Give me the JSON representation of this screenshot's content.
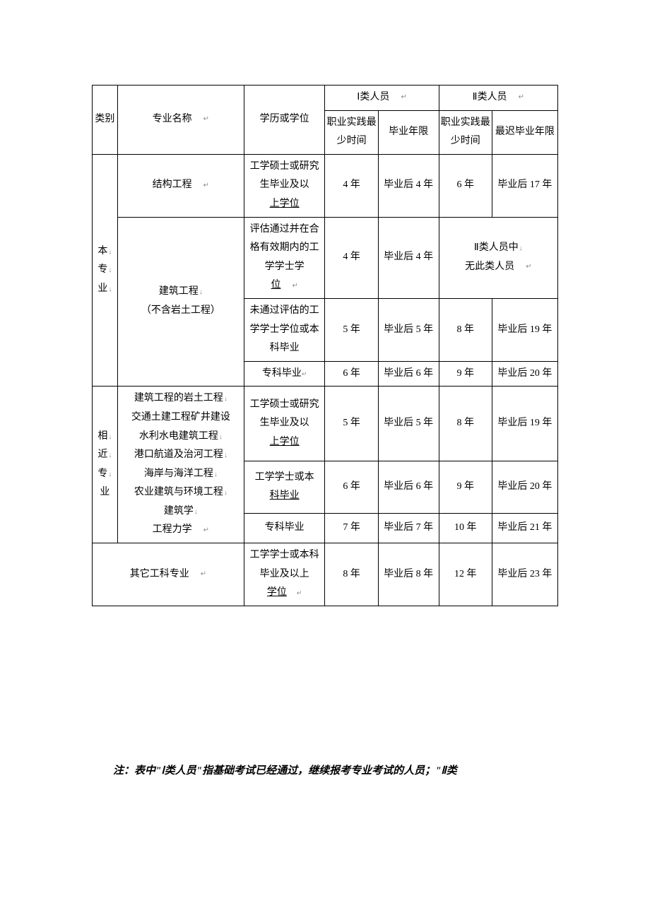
{
  "header": {
    "category": "类别",
    "major": "专业名称",
    "education": "学历或学位",
    "type1": "Ⅰ类人员",
    "type2": "Ⅱ类人员",
    "practice_time": "职业实践最少时间",
    "grad_year": "毕业年限",
    "practice_time2": "职业实践最少时间",
    "grad_year2": "最迟毕业年限"
  },
  "rows": {
    "cat1": "本",
    "cat1b": "专",
    "cat1c": "业",
    "major1": "结构工程",
    "edu1": "工学硕士或研究生毕业及以",
    "edu1b": "上学位",
    "t1_1": "4 年",
    "y1_1": "毕业后 4 年",
    "t2_1": "6 年",
    "y2_1": "毕业后 17 年",
    "major2a": "建筑工程",
    "major2b": "（不含岩土工程）",
    "edu2": "评估通过并在合格有效期内的工学学士学",
    "edu2b": "位",
    "t1_2": "4 年",
    "y1_2": "毕业后 4 年",
    "merge2a": "Ⅱ类人员中",
    "merge2b": "无此类人员",
    "edu3": "未通过评估的工学学士学位或本科毕业",
    "t1_3": "5 年",
    "y1_3": "毕业后 5 年",
    "t2_3": "8 年",
    "y2_3": "毕业后 19 年",
    "edu4": "专科毕业",
    "t1_4": "6 年",
    "y1_4": "毕业后 6 年",
    "t2_4": "9 年",
    "y2_4": "毕业后 20 年",
    "cat2a": "相",
    "cat2b": "近",
    "cat2c": "专",
    "cat2d": "业",
    "major3a": "建筑工程的岩土工程",
    "major3b": "交通土建工程矿井建设",
    "major3c": "水利水电建筑工程",
    "major3d": "港口航道及治河工程",
    "major3e": "海岸与海洋工程",
    "major3f": "农业建筑与环境工程",
    "major3g": "建筑学",
    "major3h": "工程力学",
    "edu5": "工学硕士或研究生毕业及以",
    "edu5b": "上学位",
    "t1_5": "5 年",
    "y1_5": "毕业后 5 年",
    "t2_5": "8 年",
    "y2_5": "毕业后 19 年",
    "edu6": "工学学士或本",
    "edu6b": "科毕业",
    "t1_6": "6 年",
    "y1_6": "毕业后 6 年",
    "t2_6": "9 年",
    "y2_6": "毕业后 20 年",
    "edu7": "专科毕业",
    "t1_7": "7 年",
    "y1_7": "毕业后 7 年",
    "t2_7": "10 年",
    "y2_7": "毕业后 21 年",
    "major4": "其它工科专业",
    "edu8": "工学学士或本科毕业及以上",
    "edu8b": "学位",
    "t1_8": "8 年",
    "y1_8": "毕业后 8 年",
    "t2_8": "12 年",
    "y2_8": "毕业后 23 年"
  },
  "footnote": "注：表中\"Ⅰ类人员\"指基础考试已经通过，继续报考专业考试的人员；\"Ⅱ类"
}
